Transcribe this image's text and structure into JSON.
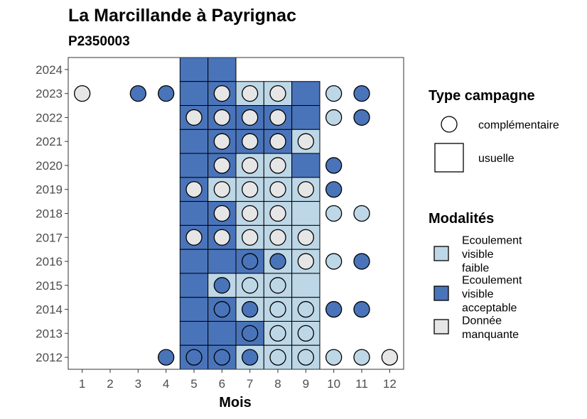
{
  "chart_data": {
    "type": "heatmap",
    "title": "La Marcillande à Payrignac",
    "subtitle": "P2350003",
    "xlabel": "Mois",
    "ylabel": "",
    "x_ticks": [
      "1",
      "2",
      "3",
      "4",
      "5",
      "6",
      "7",
      "8",
      "9",
      "10",
      "11",
      "12"
    ],
    "y_ticks": [
      "2024",
      "2023",
      "2022",
      "2021",
      "2020",
      "2019",
      "2018",
      "2017",
      "2016",
      "2015",
      "2014",
      "2013",
      "2012"
    ],
    "xlim": [
      0.5,
      12.5
    ],
    "ylim": [
      2011.5,
      2024.5
    ],
    "grid": false,
    "legend_position": "right",
    "colors": {
      "faible": "#BDD7E7",
      "acceptable": "#4A74BA",
      "manquante": "#E6E6E6",
      "stroke": "#000000"
    },
    "legends": {
      "shape_title": "Type campagne",
      "shape_items": [
        {
          "shape": "circle",
          "label": "complémentaire"
        },
        {
          "shape": "square",
          "label": "usuelle"
        }
      ],
      "fill_title": "Modalités",
      "fill_items": [
        {
          "key": "faible",
          "lines": [
            "Ecoulement",
            "visible",
            "faible"
          ]
        },
        {
          "key": "acceptable",
          "lines": [
            "Ecoulement",
            "visible",
            "acceptable"
          ]
        },
        {
          "key": "manquante",
          "lines": [
            "Donnée",
            "manquante"
          ]
        }
      ]
    },
    "squares": [
      {
        "year": 2024,
        "month": 5,
        "mod": "acceptable"
      },
      {
        "year": 2024,
        "month": 6,
        "mod": "acceptable"
      },
      {
        "year": 2023,
        "month": 5,
        "mod": "acceptable"
      },
      {
        "year": 2023,
        "month": 6,
        "mod": "acceptable"
      },
      {
        "year": 2023,
        "month": 7,
        "mod": "faible"
      },
      {
        "year": 2023,
        "month": 8,
        "mod": "faible"
      },
      {
        "year": 2023,
        "month": 9,
        "mod": "acceptable"
      },
      {
        "year": 2022,
        "month": 5,
        "mod": "acceptable"
      },
      {
        "year": 2022,
        "month": 6,
        "mod": "acceptable"
      },
      {
        "year": 2022,
        "month": 7,
        "mod": "acceptable"
      },
      {
        "year": 2022,
        "month": 8,
        "mod": "acceptable"
      },
      {
        "year": 2022,
        "month": 9,
        "mod": "acceptable"
      },
      {
        "year": 2021,
        "month": 5,
        "mod": "acceptable"
      },
      {
        "year": 2021,
        "month": 6,
        "mod": "acceptable"
      },
      {
        "year": 2021,
        "month": 7,
        "mod": "acceptable"
      },
      {
        "year": 2021,
        "month": 8,
        "mod": "acceptable"
      },
      {
        "year": 2021,
        "month": 9,
        "mod": "faible"
      },
      {
        "year": 2020,
        "month": 5,
        "mod": "acceptable"
      },
      {
        "year": 2020,
        "month": 6,
        "mod": "acceptable"
      },
      {
        "year": 2020,
        "month": 7,
        "mod": "faible"
      },
      {
        "year": 2020,
        "month": 8,
        "mod": "faible"
      },
      {
        "year": 2020,
        "month": 9,
        "mod": "acceptable"
      },
      {
        "year": 2019,
        "month": 5,
        "mod": "acceptable"
      },
      {
        "year": 2019,
        "month": 6,
        "mod": "faible"
      },
      {
        "year": 2019,
        "month": 7,
        "mod": "faible"
      },
      {
        "year": 2019,
        "month": 8,
        "mod": "faible"
      },
      {
        "year": 2019,
        "month": 9,
        "mod": "faible"
      },
      {
        "year": 2018,
        "month": 5,
        "mod": "acceptable"
      },
      {
        "year": 2018,
        "month": 6,
        "mod": "acceptable"
      },
      {
        "year": 2018,
        "month": 7,
        "mod": "faible"
      },
      {
        "year": 2018,
        "month": 8,
        "mod": "faible"
      },
      {
        "year": 2018,
        "month": 9,
        "mod": "faible"
      },
      {
        "year": 2017,
        "month": 5,
        "mod": "acceptable"
      },
      {
        "year": 2017,
        "month": 6,
        "mod": "acceptable"
      },
      {
        "year": 2017,
        "month": 7,
        "mod": "faible"
      },
      {
        "year": 2017,
        "month": 8,
        "mod": "faible"
      },
      {
        "year": 2017,
        "month": 9,
        "mod": "faible"
      },
      {
        "year": 2016,
        "month": 5,
        "mod": "acceptable"
      },
      {
        "year": 2016,
        "month": 6,
        "mod": "acceptable"
      },
      {
        "year": 2016,
        "month": 7,
        "mod": "acceptable"
      },
      {
        "year": 2016,
        "month": 8,
        "mod": "faible"
      },
      {
        "year": 2016,
        "month": 9,
        "mod": "faible"
      },
      {
        "year": 2015,
        "month": 5,
        "mod": "acceptable"
      },
      {
        "year": 2015,
        "month": 6,
        "mod": "faible"
      },
      {
        "year": 2015,
        "month": 7,
        "mod": "faible"
      },
      {
        "year": 2015,
        "month": 8,
        "mod": "faible"
      },
      {
        "year": 2015,
        "month": 9,
        "mod": "faible"
      },
      {
        "year": 2014,
        "month": 5,
        "mod": "acceptable"
      },
      {
        "year": 2014,
        "month": 6,
        "mod": "acceptable"
      },
      {
        "year": 2014,
        "month": 7,
        "mod": "faible"
      },
      {
        "year": 2014,
        "month": 8,
        "mod": "faible"
      },
      {
        "year": 2014,
        "month": 9,
        "mod": "faible"
      },
      {
        "year": 2013,
        "month": 5,
        "mod": "acceptable"
      },
      {
        "year": 2013,
        "month": 6,
        "mod": "acceptable"
      },
      {
        "year": 2013,
        "month": 7,
        "mod": "acceptable"
      },
      {
        "year": 2013,
        "month": 8,
        "mod": "faible"
      },
      {
        "year": 2013,
        "month": 9,
        "mod": "faible"
      },
      {
        "year": 2012,
        "month": 5,
        "mod": "acceptable"
      },
      {
        "year": 2012,
        "month": 6,
        "mod": "acceptable"
      },
      {
        "year": 2012,
        "month": 7,
        "mod": "faible"
      },
      {
        "year": 2012,
        "month": 8,
        "mod": "faible"
      },
      {
        "year": 2012,
        "month": 9,
        "mod": "faible"
      }
    ],
    "circles": [
      {
        "year": 2023,
        "month": 1,
        "mod": "manquante"
      },
      {
        "year": 2023,
        "month": 3,
        "mod": "acceptable"
      },
      {
        "year": 2023,
        "month": 4,
        "mod": "acceptable"
      },
      {
        "year": 2023,
        "month": 6,
        "mod": "manquante"
      },
      {
        "year": 2023,
        "month": 7,
        "mod": "manquante"
      },
      {
        "year": 2023,
        "month": 8,
        "mod": "manquante"
      },
      {
        "year": 2023,
        "month": 10,
        "mod": "faible"
      },
      {
        "year": 2023,
        "month": 11,
        "mod": "acceptable"
      },
      {
        "year": 2022,
        "month": 5,
        "mod": "manquante"
      },
      {
        "year": 2022,
        "month": 6,
        "mod": "manquante"
      },
      {
        "year": 2022,
        "month": 7,
        "mod": "manquante"
      },
      {
        "year": 2022,
        "month": 8,
        "mod": "manquante"
      },
      {
        "year": 2022,
        "month": 10,
        "mod": "faible"
      },
      {
        "year": 2022,
        "month": 11,
        "mod": "acceptable"
      },
      {
        "year": 2021,
        "month": 6,
        "mod": "manquante"
      },
      {
        "year": 2021,
        "month": 7,
        "mod": "manquante"
      },
      {
        "year": 2021,
        "month": 8,
        "mod": "manquante"
      },
      {
        "year": 2021,
        "month": 9,
        "mod": "manquante"
      },
      {
        "year": 2020,
        "month": 6,
        "mod": "manquante"
      },
      {
        "year": 2020,
        "month": 7,
        "mod": "manquante"
      },
      {
        "year": 2020,
        "month": 8,
        "mod": "manquante"
      },
      {
        "year": 2020,
        "month": 10,
        "mod": "acceptable"
      },
      {
        "year": 2019,
        "month": 5,
        "mod": "manquante"
      },
      {
        "year": 2019,
        "month": 6,
        "mod": "manquante"
      },
      {
        "year": 2019,
        "month": 7,
        "mod": "manquante"
      },
      {
        "year": 2019,
        "month": 8,
        "mod": "manquante"
      },
      {
        "year": 2019,
        "month": 9,
        "mod": "manquante"
      },
      {
        "year": 2019,
        "month": 10,
        "mod": "acceptable"
      },
      {
        "year": 2018,
        "month": 6,
        "mod": "manquante"
      },
      {
        "year": 2018,
        "month": 7,
        "mod": "manquante"
      },
      {
        "year": 2018,
        "month": 8,
        "mod": "manquante"
      },
      {
        "year": 2018,
        "month": 10,
        "mod": "faible"
      },
      {
        "year": 2018,
        "month": 11,
        "mod": "faible"
      },
      {
        "year": 2017,
        "month": 5,
        "mod": "manquante"
      },
      {
        "year": 2017,
        "month": 6,
        "mod": "manquante"
      },
      {
        "year": 2017,
        "month": 7,
        "mod": "manquante"
      },
      {
        "year": 2017,
        "month": 8,
        "mod": "manquante"
      },
      {
        "year": 2017,
        "month": 9,
        "mod": "manquante"
      },
      {
        "year": 2016,
        "month": 7,
        "mod": "acceptable"
      },
      {
        "year": 2016,
        "month": 8,
        "mod": "acceptable"
      },
      {
        "year": 2016,
        "month": 9,
        "mod": "manquante"
      },
      {
        "year": 2016,
        "month": 10,
        "mod": "faible"
      },
      {
        "year": 2016,
        "month": 11,
        "mod": "acceptable"
      },
      {
        "year": 2015,
        "month": 6,
        "mod": "acceptable"
      },
      {
        "year": 2015,
        "month": 7,
        "mod": "faible"
      },
      {
        "year": 2015,
        "month": 8,
        "mod": "faible"
      },
      {
        "year": 2014,
        "month": 6,
        "mod": "acceptable"
      },
      {
        "year": 2014,
        "month": 7,
        "mod": "acceptable"
      },
      {
        "year": 2014,
        "month": 8,
        "mod": "faible"
      },
      {
        "year": 2014,
        "month": 9,
        "mod": "faible"
      },
      {
        "year": 2014,
        "month": 10,
        "mod": "acceptable"
      },
      {
        "year": 2014,
        "month": 11,
        "mod": "acceptable"
      },
      {
        "year": 2013,
        "month": 7,
        "mod": "acceptable"
      },
      {
        "year": 2013,
        "month": 8,
        "mod": "faible"
      },
      {
        "year": 2013,
        "month": 9,
        "mod": "faible"
      },
      {
        "year": 2012,
        "month": 4,
        "mod": "acceptable"
      },
      {
        "year": 2012,
        "month": 5,
        "mod": "acceptable"
      },
      {
        "year": 2012,
        "month": 6,
        "mod": "acceptable"
      },
      {
        "year": 2012,
        "month": 7,
        "mod": "acceptable"
      },
      {
        "year": 2012,
        "month": 8,
        "mod": "faible"
      },
      {
        "year": 2012,
        "month": 9,
        "mod": "faible"
      },
      {
        "year": 2012,
        "month": 10,
        "mod": "faible"
      },
      {
        "year": 2012,
        "month": 11,
        "mod": "faible"
      },
      {
        "year": 2012,
        "month": 12,
        "mod": "manquante"
      }
    ]
  }
}
